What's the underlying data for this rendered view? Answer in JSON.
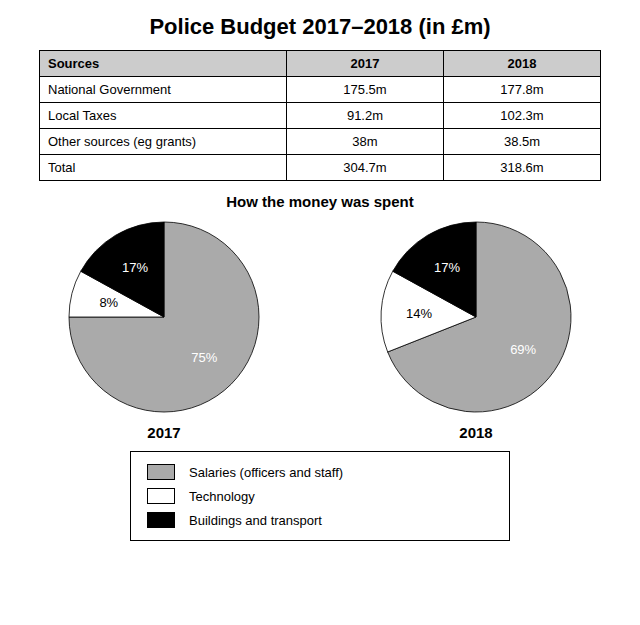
{
  "title": "Police Budget 2017–2018 (in £m)",
  "table": {
    "headers": [
      "Sources",
      "2017",
      "2018"
    ],
    "rows": [
      [
        "National Government",
        "175.5m",
        "177.8m"
      ],
      [
        "Local Taxes",
        "91.2m",
        "102.3m"
      ],
      [
        "Other sources (eg grants)",
        "38m",
        "38.5m"
      ],
      [
        "Total",
        "304.7m",
        "318.6m"
      ]
    ]
  },
  "subtitle": "How the money was spent",
  "legend": "bottom",
  "chart_data": [
    {
      "type": "pie",
      "title": "2017",
      "categories": [
        "Salaries (officers and staff)",
        "Technology",
        "Buildings and transport"
      ],
      "values": [
        75,
        8,
        17
      ],
      "value_labels": [
        "75%",
        "8%",
        "17%"
      ],
      "colors": [
        "#aaaaaa",
        "#ffffff",
        "#000000"
      ],
      "data_labels": true
    },
    {
      "type": "pie",
      "title": "2018",
      "categories": [
        "Salaries (officers and staff)",
        "Technology",
        "Buildings and transport"
      ],
      "values": [
        69,
        14,
        17
      ],
      "value_labels": [
        "69%",
        "14%",
        "17%"
      ],
      "colors": [
        "#aaaaaa",
        "#ffffff",
        "#000000"
      ],
      "data_labels": true
    }
  ]
}
